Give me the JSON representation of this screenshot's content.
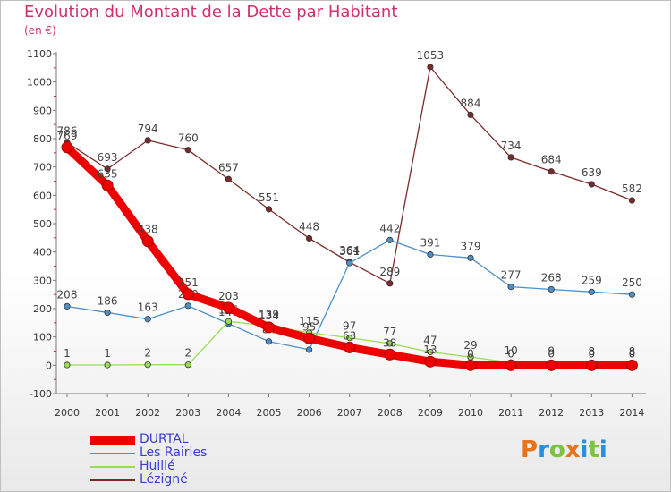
{
  "chart_data": {
    "type": "line",
    "title": "Evolution du Montant de la Dette par Habitant",
    "subtitle": "(en €)",
    "x": [
      "2000",
      "2001",
      "2002",
      "2003",
      "2004",
      "2005",
      "2006",
      "2007",
      "2008",
      "2009",
      "2010",
      "2011",
      "2012",
      "2013",
      "2014"
    ],
    "ylim": [
      -100,
      1100
    ],
    "yticks": [
      -100,
      0,
      100,
      200,
      300,
      400,
      500,
      600,
      700,
      800,
      900,
      1000,
      1100
    ],
    "grid": false,
    "legend_position": "bottom-left",
    "series": [
      {
        "name": "Lézigné",
        "color": "#7b2a2a",
        "values": [
          786,
          693,
          794,
          760,
          657,
          551,
          448,
          364,
          289,
          1053,
          884,
          734,
          684,
          639,
          582
        ]
      },
      {
        "name": "Les Rairies",
        "color": "#4d8fc8",
        "values": [
          208,
          186,
          163,
          210,
          147,
          84,
          55,
          361,
          442,
          391,
          379,
          277,
          268,
          259,
          250
        ]
      },
      {
        "name": "Huillé",
        "color": "#99dd55",
        "values": [
          1,
          1,
          2,
          2,
          155,
          139,
          115,
          97,
          77,
          47,
          29,
          10,
          9,
          8,
          8
        ]
      },
      {
        "name": "DURTAL",
        "color": "#ee0000",
        "values": [
          769,
          635,
          438,
          251,
          203,
          134,
          95,
          63,
          38,
          13,
          0,
          0,
          0,
          0,
          0
        ]
      }
    ]
  },
  "legend": {
    "labels": [
      "DURTAL",
      "Les Rairies",
      "Huillé",
      "Lézigné"
    ]
  },
  "logo": {
    "text": "Proxiti",
    "letters": [
      "P",
      "r",
      "o",
      "x",
      "i",
      "t",
      "i"
    ]
  }
}
